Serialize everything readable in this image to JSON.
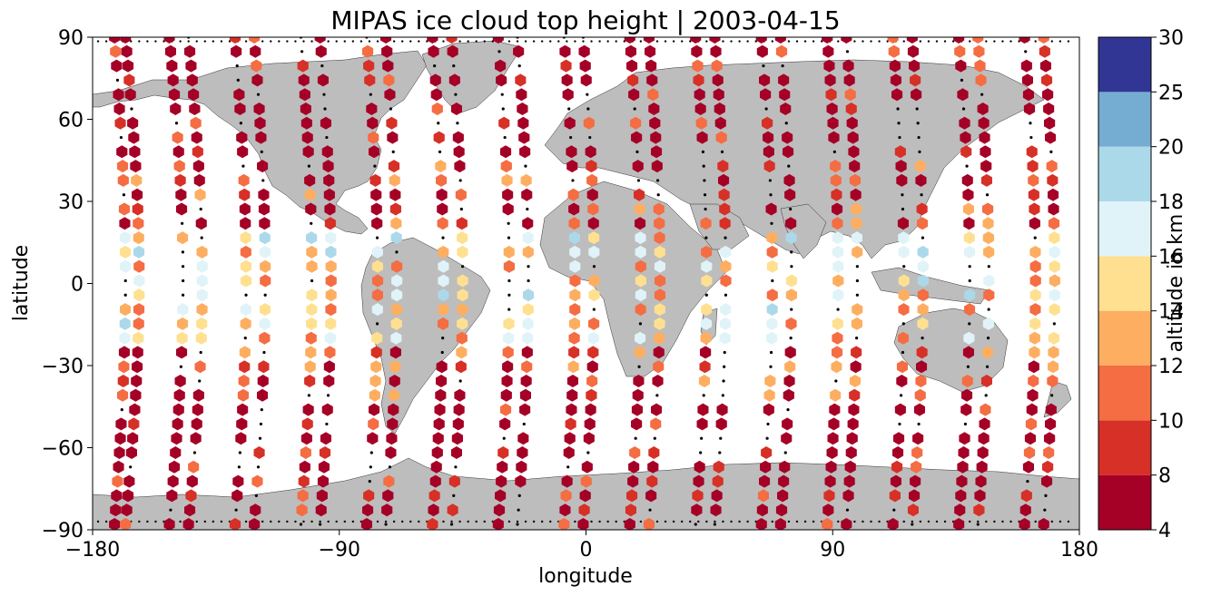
{
  "chart_data": {
    "type": "scatter",
    "title": "MIPAS ice cloud top height | 2003-04-15",
    "xlabel": "longitude",
    "ylabel": "latitude",
    "xlim": [
      -180,
      180
    ],
    "ylim": [
      -90,
      90
    ],
    "xticks": [
      -180,
      -90,
      0,
      90,
      180
    ],
    "yticks": [
      90,
      60,
      30,
      0,
      -30,
      -60,
      -90
    ],
    "xtick_labels": [
      "−180",
      "−90",
      "0",
      "90",
      "180"
    ],
    "ytick_labels": [
      "90",
      "60",
      "30",
      "0",
      "−30",
      "−60",
      "−90"
    ],
    "colorbar": {
      "label": "altitude in km",
      "bounds": [
        4,
        8,
        10,
        12,
        14,
        16,
        18,
        20,
        25,
        30
      ],
      "tick_labels": [
        "4",
        "8",
        "10",
        "12",
        "14",
        "16",
        "18",
        "20",
        "25",
        "30"
      ],
      "colors": [
        "#a50026",
        "#d73027",
        "#f46d43",
        "#fdae61",
        "#fee090",
        "#e0f3f8",
        "#abd9e9",
        "#74add1",
        "#313695"
      ]
    },
    "land_color": "#bdbdbd",
    "marker": "hexagon",
    "orbit_tracks": [
      {
        "lon_range": [
          -172,
          -168
        ],
        "lat_range": [
          90,
          -88
        ]
      },
      {
        "lon_range": [
          -168,
          -163
        ],
        "lat_range": [
          90,
          -88
        ]
      },
      {
        "lon_range": [
          -152,
          -147
        ],
        "lat_range": [
          90,
          -88
        ]
      },
      {
        "lon_range": [
          -145,
          -140
        ],
        "lat_range": [
          90,
          -88
        ]
      },
      {
        "lon_range": [
          -128,
          -124
        ],
        "lat_range": [
          90,
          -88
        ]
      },
      {
        "lon_range": [
          -121,
          -117
        ],
        "lat_range": [
          90,
          -88
        ]
      },
      {
        "lon_range": [
          -104,
          -100
        ],
        "lat_range": [
          90,
          -88
        ]
      },
      {
        "lon_range": [
          -97,
          -93
        ],
        "lat_range": [
          90,
          -88
        ]
      },
      {
        "lon_range": [
          -80,
          -76
        ],
        "lat_range": [
          90,
          -88
        ]
      },
      {
        "lon_range": [
          -73,
          -69
        ],
        "lat_range": [
          90,
          -88
        ]
      },
      {
        "lon_range": [
          -56,
          -52
        ],
        "lat_range": [
          90,
          -88
        ]
      },
      {
        "lon_range": [
          -49,
          -45
        ],
        "lat_range": [
          90,
          -88
        ]
      },
      {
        "lon_range": [
          -32,
          -28
        ],
        "lat_range": [
          90,
          -88
        ]
      },
      {
        "lon_range": [
          -25,
          -21
        ],
        "lat_range": [
          90,
          -88
        ]
      },
      {
        "lon_range": [
          -8,
          -4
        ],
        "lat_range": [
          90,
          -88
        ]
      },
      {
        "lon_range": [
          -1,
          3
        ],
        "lat_range": [
          90,
          -88
        ]
      },
      {
        "lon_range": [
          16,
          20
        ],
        "lat_range": [
          90,
          -88
        ]
      },
      {
        "lon_range": [
          23,
          27
        ],
        "lat_range": [
          90,
          -88
        ]
      },
      {
        "lon_range": [
          40,
          44
        ],
        "lat_range": [
          90,
          -88
        ]
      },
      {
        "lon_range": [
          47,
          51
        ],
        "lat_range": [
          90,
          -88
        ]
      },
      {
        "lon_range": [
          64,
          68
        ],
        "lat_range": [
          90,
          -88
        ]
      },
      {
        "lon_range": [
          71,
          75
        ],
        "lat_range": [
          90,
          -88
        ]
      },
      {
        "lon_range": [
          88,
          92
        ],
        "lat_range": [
          90,
          -88
        ]
      },
      {
        "lon_range": [
          95,
          99
        ],
        "lat_range": [
          90,
          -88
        ]
      },
      {
        "lon_range": [
          112,
          116
        ],
        "lat_range": [
          90,
          -88
        ]
      },
      {
        "lon_range": [
          119,
          123
        ],
        "lat_range": [
          90,
          -88
        ]
      },
      {
        "lon_range": [
          136,
          140
        ],
        "lat_range": [
          90,
          -88
        ]
      },
      {
        "lon_range": [
          143,
          147
        ],
        "lat_range": [
          90,
          -88
        ]
      },
      {
        "lon_range": [
          160,
          164
        ],
        "lat_range": [
          90,
          -88
        ]
      },
      {
        "lon_range": [
          167,
          171
        ],
        "lat_range": [
          90,
          -88
        ]
      }
    ]
  }
}
